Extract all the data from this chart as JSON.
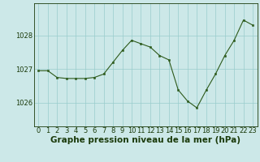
{
  "x": [
    0,
    1,
    2,
    3,
    4,
    5,
    6,
    7,
    8,
    9,
    10,
    11,
    12,
    13,
    14,
    15,
    16,
    17,
    18,
    19,
    20,
    21,
    22,
    23
  ],
  "y": [
    1026.95,
    1026.95,
    1026.75,
    1026.72,
    1026.72,
    1026.72,
    1026.75,
    1026.85,
    1027.2,
    1027.55,
    1027.85,
    1027.75,
    1027.65,
    1027.4,
    1027.27,
    1026.38,
    1026.05,
    1025.85,
    1026.37,
    1026.85,
    1027.4,
    1027.85,
    1028.45,
    1028.3
  ],
  "yticks": [
    1026,
    1027,
    1028
  ],
  "ylim": [
    1025.3,
    1028.95
  ],
  "xlim": [
    -0.5,
    23.5
  ],
  "xticks": [
    0,
    1,
    2,
    3,
    4,
    5,
    6,
    7,
    8,
    9,
    10,
    11,
    12,
    13,
    14,
    15,
    16,
    17,
    18,
    19,
    20,
    21,
    22,
    23
  ],
  "line_color": "#2d5a1b",
  "marker_color": "#2d5a1b",
  "bg_color": "#cce8e8",
  "grid_color": "#99cccc",
  "xlabel": "Graphe pression niveau de la mer (hPa)",
  "xlabel_color": "#1a3a0a",
  "tick_color": "#1a3a0a",
  "label_fontsize": 6,
  "xlabel_fontsize": 7.5
}
